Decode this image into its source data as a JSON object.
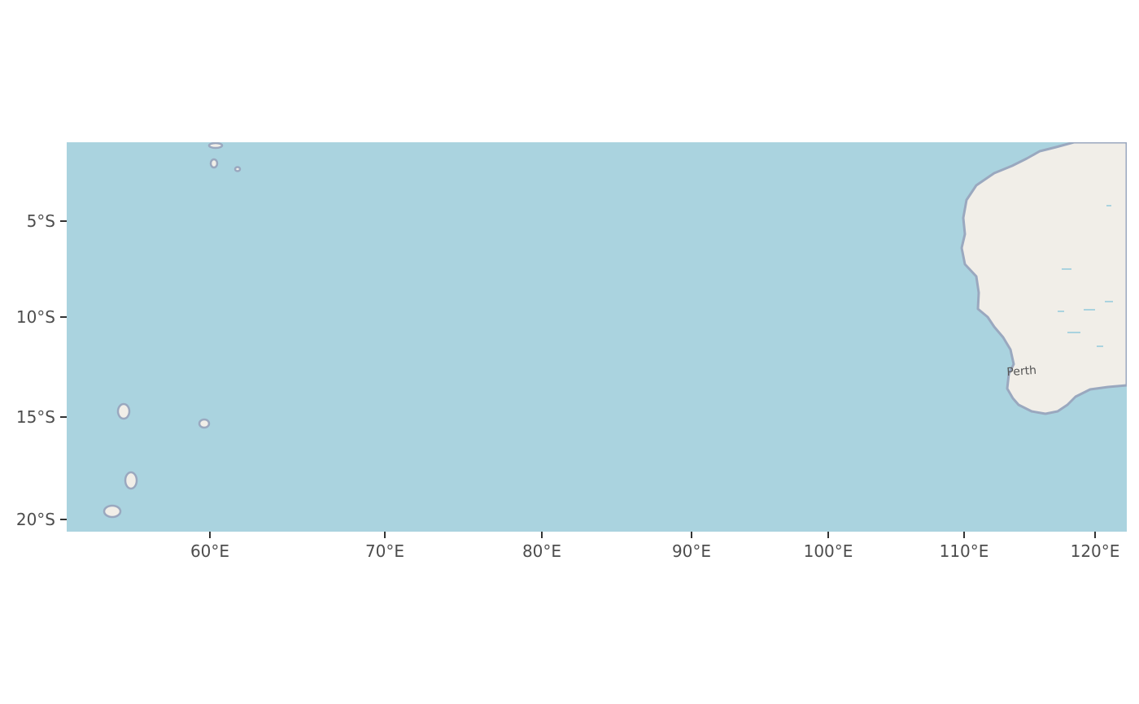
{
  "map": {
    "ocean_color": "#aad3df",
    "land_color": "#f1eee8",
    "coast_color": "#9aa8bf",
    "tick_color": "#333333",
    "label_color": "#4d4d4d"
  },
  "axes": {
    "x_ticks": [
      {
        "value": 60,
        "label": "60°E"
      },
      {
        "value": 70,
        "label": "70°E"
      },
      {
        "value": 80,
        "label": "80°E"
      },
      {
        "value": 90,
        "label": "90°E"
      },
      {
        "value": 100,
        "label": "100°E"
      },
      {
        "value": 110,
        "label": "110°E"
      },
      {
        "value": 120,
        "label": "120°E"
      }
    ],
    "y_ticks": [
      {
        "value": -5,
        "label": "5°S"
      },
      {
        "value": -10,
        "label": "10°S"
      },
      {
        "value": -15,
        "label": "15°S"
      },
      {
        "value": -20,
        "label": "20°S"
      }
    ]
  },
  "places": [
    {
      "name": "Perth",
      "lon": 116.6,
      "lat": -12.8
    }
  ]
}
